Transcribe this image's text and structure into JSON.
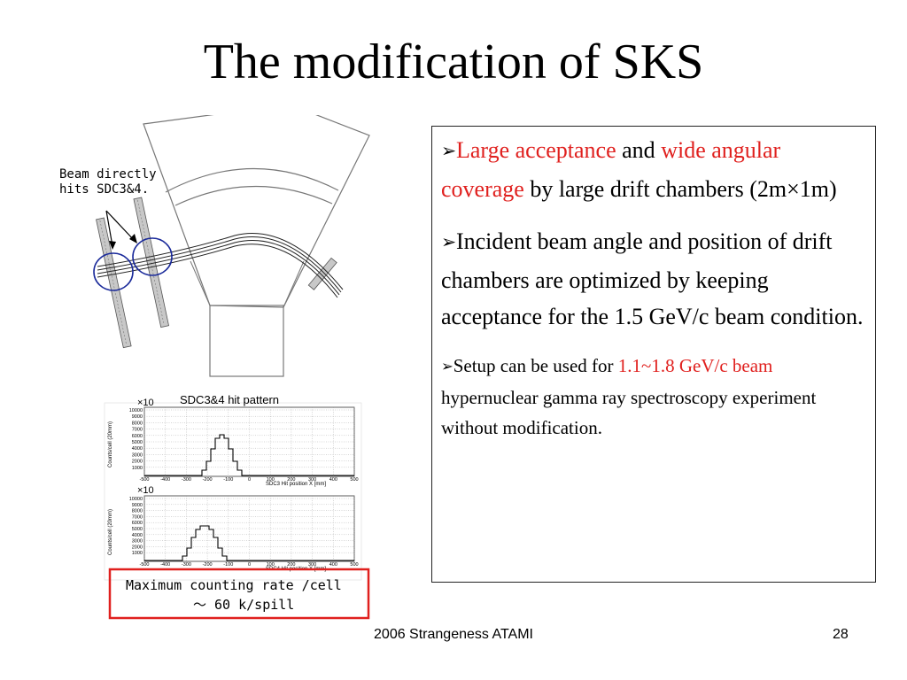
{
  "slide": {
    "title": "The modification of SKS",
    "footer_center": "2006 Strangeness ATAMI",
    "page_number": "28"
  },
  "bullets": [
    {
      "marker": "➢",
      "segments": [
        {
          "text": "Large acceptance",
          "color": "#e0201e"
        },
        {
          "text": " and ",
          "color": "#000000"
        },
        {
          "text": "wide angular coverage",
          "color": "#e0201e"
        },
        {
          "text": " by large drift chambers (2m×1m)",
          "color": "#000000"
        }
      ]
    },
    {
      "marker": "➢",
      "segments": [
        {
          "text": "Incident beam angle and position of drift chambers are optimized by keeping acceptance for the 1.5 GeV/c beam condition.",
          "color": "#000000"
        }
      ]
    },
    {
      "marker": "➢",
      "segments": [
        {
          "text": "Setup can be used for ",
          "color": "#000000"
        },
        {
          "text": "1.1~1.8 GeV/c beam",
          "color": "#e0201e"
        },
        {
          "text": " hypernuclear gamma ray spectroscopy experiment without modification.",
          "color": "#000000"
        }
      ]
    }
  ],
  "diagram": {
    "annotation_line1": "Beam directly",
    "annotation_line2": "hits SDC3&4."
  },
  "histograms": {
    "title": "SDC3&4 hit pattern",
    "scale_label": "×10",
    "ylabel": "Counts/cell (20mm)",
    "y_ticks": [
      "10000",
      "9000",
      "8000",
      "7000",
      "6000",
      "5000",
      "4000",
      "3000",
      "2000",
      "1000"
    ],
    "x_ticks": [
      "-500",
      "-400",
      "-300",
      "-200",
      "-100",
      "0",
      "100",
      "200",
      "300",
      "400",
      "500"
    ],
    "top_xlabel": "SDC3 Hit position X [mm]",
    "bottom_xlabel": "SDC4 Hit position X [mm]",
    "note_line1": "Maximum counting rate /cell",
    "note_line2": "〜 60 k/spill"
  },
  "colors": {
    "accent_red": "#e0201e",
    "circle_blue": "#1a2a9a"
  }
}
